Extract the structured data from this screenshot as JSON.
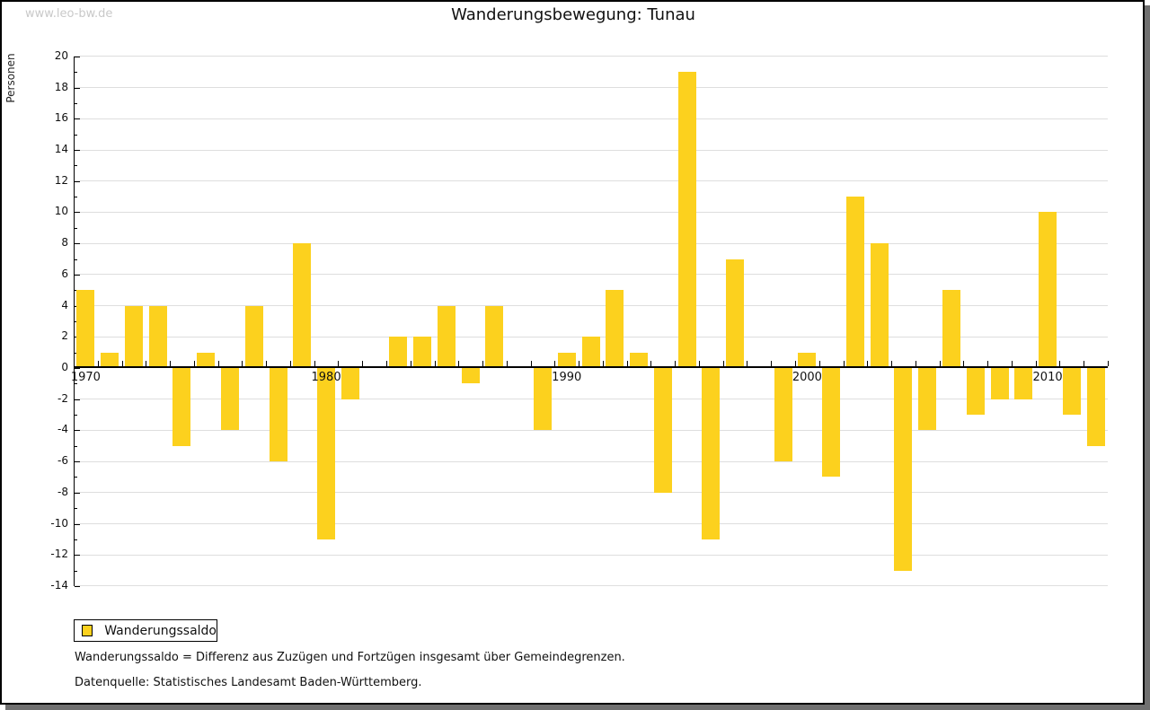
{
  "watermark": "www.leo-bw.de",
  "header": {
    "title": "Wanderungsbewegung: Tunau"
  },
  "chart_data": {
    "type": "bar",
    "title": "Wanderungsbewegung: Tunau",
    "xlabel": "",
    "ylabel": "Personen",
    "ylim": [
      -14,
      20
    ],
    "ytick_step": 2,
    "grid": true,
    "legend_position": "bottom-left",
    "series_name": "Wanderungssaldo",
    "bar_color": "#FCD11E",
    "x_axis_labels": [
      1970,
      1980,
      1990,
      2000,
      2010
    ],
    "categories": [
      1970,
      1971,
      1972,
      1973,
      1974,
      1975,
      1976,
      1977,
      1978,
      1979,
      1980,
      1981,
      1982,
      1983,
      1984,
      1985,
      1986,
      1987,
      1988,
      1989,
      1990,
      1991,
      1992,
      1993,
      1994,
      1995,
      1996,
      1997,
      1998,
      1999,
      2000,
      2001,
      2002,
      2003,
      2004,
      2005,
      2006,
      2007,
      2008,
      2009,
      2010,
      2011,
      2012
    ],
    "values": [
      5,
      1,
      4,
      4,
      -5,
      1,
      -4,
      4,
      -6,
      8,
      -11,
      -2,
      0,
      2,
      2,
      4,
      -1,
      4,
      0,
      -4,
      1,
      2,
      5,
      1,
      -8,
      19,
      -11,
      7,
      0,
      -6,
      1,
      -7,
      11,
      8,
      -13,
      -4,
      5,
      -3,
      -2,
      -2,
      10,
      -3,
      -5
    ]
  },
  "legend": {
    "label": "Wanderungssaldo"
  },
  "footnotes": {
    "line1": "Wanderungssaldo = Differenz aus Zuzügen und Fortzügen insgesamt über Gemeindegrenzen.",
    "line2": "Datenquelle: Statistisches Landesamt Baden-Württemberg."
  }
}
